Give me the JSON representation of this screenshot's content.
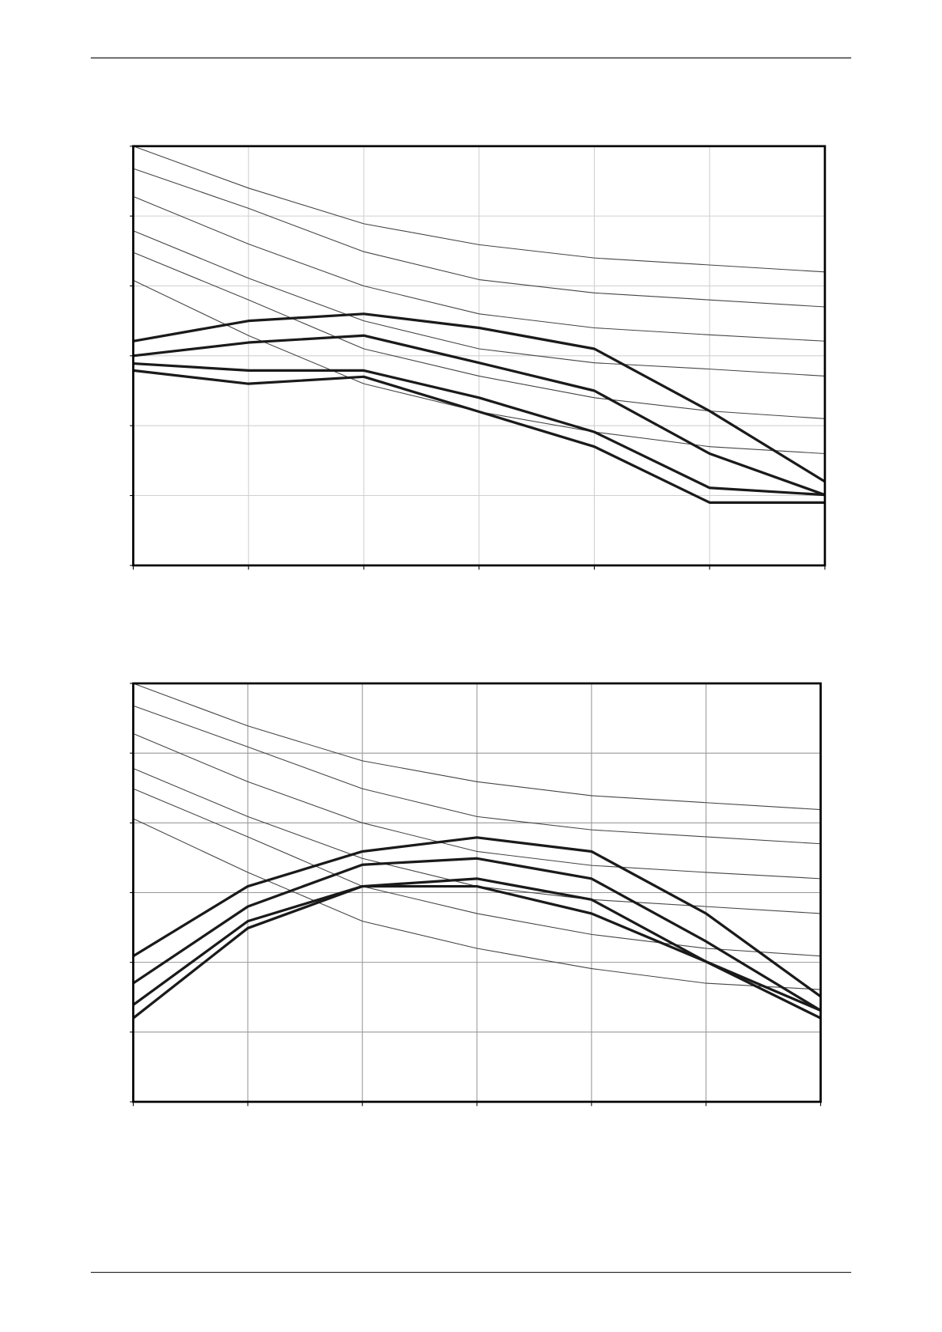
{
  "chart_data": [
    {
      "type": "line",
      "x": [
        0,
        1,
        2,
        3,
        4,
        5,
        6
      ],
      "xlim": [
        0,
        6
      ],
      "xticks": [
        0,
        1,
        2,
        3,
        4,
        5,
        6
      ],
      "ylim": [
        0,
        6
      ],
      "yticks": [
        0,
        1,
        2,
        3,
        4,
        5,
        6
      ],
      "grid": true,
      "grid_color": "#d0d0d0",
      "series": [
        {
          "color": "#444444",
          "linewidth": 1,
          "values": [
            6.0,
            5.4,
            4.89,
            4.59,
            4.4,
            4.3,
            4.2
          ]
        },
        {
          "color": "#444444",
          "linewidth": 1,
          "values": [
            5.68,
            5.11,
            4.49,
            4.09,
            3.9,
            3.8,
            3.7
          ]
        },
        {
          "color": "#444444",
          "linewidth": 1,
          "values": [
            5.28,
            4.6,
            4.0,
            3.6,
            3.4,
            3.3,
            3.21
          ]
        },
        {
          "color": "#444444",
          "linewidth": 1,
          "values": [
            4.79,
            4.11,
            3.5,
            3.1,
            2.9,
            2.81,
            2.71
          ]
        },
        {
          "color": "#444444",
          "linewidth": 1,
          "values": [
            4.48,
            3.8,
            3.1,
            2.71,
            2.4,
            2.21,
            2.1
          ]
        },
        {
          "color": "#444444",
          "linewidth": 1,
          "values": [
            4.08,
            3.29,
            2.6,
            2.2,
            1.91,
            1.7,
            1.6
          ]
        },
        {
          "color": "#1a1a1a",
          "linewidth": 3,
          "values": [
            3.21,
            3.5,
            3.6,
            3.4,
            3.1,
            2.21,
            1.2
          ]
        },
        {
          "color": "#1a1a1a",
          "linewidth": 3,
          "values": [
            3.0,
            3.19,
            3.29,
            2.9,
            2.5,
            1.6,
            1.01
          ]
        },
        {
          "color": "#1a1a1a",
          "linewidth": 3,
          "values": [
            2.89,
            2.79,
            2.79,
            2.4,
            1.91,
            1.11,
            1.01
          ]
        },
        {
          "color": "#1a1a1a",
          "linewidth": 3,
          "values": [
            2.79,
            2.6,
            2.7,
            2.2,
            1.7,
            0.9,
            0.9
          ]
        }
      ]
    },
    {
      "type": "line",
      "x": [
        0,
        1,
        2,
        3,
        4,
        5,
        6
      ],
      "xlim": [
        0,
        6
      ],
      "xticks": [
        0,
        1,
        2,
        3,
        4,
        5,
        6
      ],
      "ylim": [
        0,
        6
      ],
      "yticks": [
        0,
        1,
        2,
        3,
        4,
        5,
        6
      ],
      "grid": true,
      "grid_color": "#999999",
      "series": [
        {
          "color": "#444444",
          "linewidth": 1,
          "values": [
            6.0,
            5.39,
            4.89,
            4.59,
            4.39,
            4.29,
            4.19
          ]
        },
        {
          "color": "#444444",
          "linewidth": 1,
          "values": [
            5.68,
            5.09,
            4.49,
            4.09,
            3.9,
            3.8,
            3.7
          ]
        },
        {
          "color": "#444444",
          "linewidth": 1,
          "values": [
            5.28,
            4.59,
            4.0,
            3.59,
            3.39,
            3.29,
            3.2
          ]
        },
        {
          "color": "#444444",
          "linewidth": 1,
          "values": [
            4.78,
            4.09,
            3.49,
            3.09,
            2.9,
            2.8,
            2.7
          ]
        },
        {
          "color": "#444444",
          "linewidth": 1,
          "values": [
            4.49,
            3.8,
            3.09,
            2.7,
            2.4,
            2.2,
            2.09
          ]
        },
        {
          "color": "#444444",
          "linewidth": 1,
          "values": [
            4.06,
            3.29,
            2.59,
            2.2,
            1.91,
            1.7,
            1.61
          ]
        },
        {
          "color": "#1a1a1a",
          "linewidth": 3,
          "values": [
            2.09,
            3.09,
            3.59,
            3.79,
            3.59,
            2.7,
            1.51
          ]
        },
        {
          "color": "#1a1a1a",
          "linewidth": 3,
          "values": [
            1.7,
            2.8,
            3.4,
            3.49,
            3.2,
            2.3,
            1.31
          ]
        },
        {
          "color": "#1a1a1a",
          "linewidth": 3,
          "values": [
            1.39,
            2.59,
            3.09,
            3.2,
            2.9,
            2.01,
            1.31
          ]
        },
        {
          "color": "#1a1a1a",
          "linewidth": 3,
          "values": [
            1.2,
            2.49,
            3.09,
            3.09,
            2.7,
            2.01,
            1.2
          ]
        }
      ]
    }
  ]
}
